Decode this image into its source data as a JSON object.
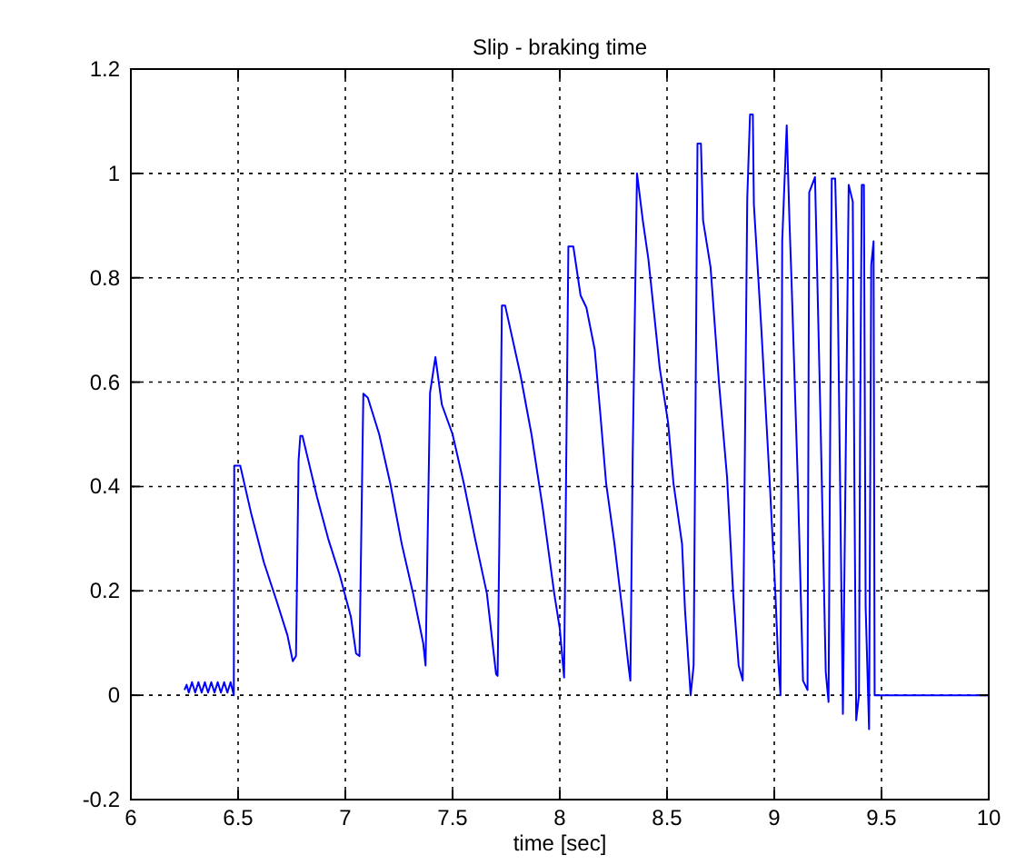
{
  "chart_data": {
    "type": "line",
    "title": "Slip - braking time",
    "xlabel": "time [sec]",
    "xlim": [
      6,
      10
    ],
    "xticks": [
      6,
      6.5,
      7,
      7.5,
      8,
      8.5,
      9,
      9.5,
      10
    ],
    "ylim": [
      -0.2,
      1.2
    ],
    "yticks": [
      -0.2,
      0,
      0.2,
      0.4,
      0.6,
      0.8,
      1,
      1.2
    ],
    "grid": true,
    "line_style": "solid",
    "series": [
      {
        "color": "#0000ff",
        "x": [
          6.25,
          6.26,
          6.27,
          6.285,
          6.3,
          6.315,
          6.33,
          6.345,
          6.36,
          6.375,
          6.39,
          6.405,
          6.42,
          6.435,
          6.45,
          6.465,
          6.48,
          6.482,
          6.51,
          6.56,
          6.62,
          6.68,
          6.73,
          6.755,
          6.77,
          6.782,
          6.79,
          6.8,
          6.868,
          6.92,
          6.974,
          7.026,
          7.05,
          7.066,
          7.084,
          7.105,
          7.158,
          7.21,
          7.263,
          7.316,
          7.363,
          7.374,
          7.395,
          7.42,
          7.45,
          7.5,
          7.553,
          7.605,
          7.66,
          7.703,
          7.71,
          7.718,
          7.73,
          7.745,
          7.816,
          7.868,
          7.92,
          7.974,
          8.0,
          8.02,
          8.04,
          8.063,
          8.097,
          8.124,
          8.163,
          8.19,
          8.216,
          8.255,
          8.295,
          8.32,
          8.329,
          8.34,
          8.36,
          8.387,
          8.413,
          8.44,
          8.466,
          8.505,
          8.53,
          8.57,
          8.584,
          8.61,
          8.624,
          8.642,
          8.658,
          8.668,
          8.703,
          8.742,
          8.78,
          8.808,
          8.834,
          8.853,
          8.874,
          8.887,
          8.9,
          8.905,
          8.94,
          8.979,
          9.005,
          9.018,
          9.029,
          9.037,
          9.058,
          9.071,
          9.08,
          9.11,
          9.134,
          9.155,
          9.163,
          9.19,
          9.216,
          9.24,
          9.253,
          9.268,
          9.284,
          9.295,
          9.32,
          9.347,
          9.366,
          9.374,
          9.382,
          9.395,
          9.4,
          9.408,
          9.418,
          9.426,
          9.442,
          9.452,
          9.463,
          9.468,
          10
        ],
        "values": [
          0.01,
          0.02,
          0.005,
          0.025,
          0.005,
          0.025,
          0.005,
          0.025,
          0.005,
          0.025,
          0.005,
          0.025,
          0.005,
          0.025,
          0.005,
          0.025,
          0,
          0.44,
          0.44,
          0.35,
          0.255,
          0.18,
          0.115,
          0.065,
          0.075,
          0.45,
          0.497,
          0.497,
          0.38,
          0.3,
          0.23,
          0.15,
          0.08,
          0.075,
          0.578,
          0.57,
          0.5,
          0.405,
          0.29,
          0.195,
          0.1,
          0.057,
          0.58,
          0.648,
          0.557,
          0.5,
          0.405,
          0.3,
          0.195,
          0.04,
          0.037,
          0.29,
          0.747,
          0.747,
          0.615,
          0.5,
          0.36,
          0.195,
          0.127,
          0.034,
          0.86,
          0.86,
          0.766,
          0.743,
          0.662,
          0.534,
          0.406,
          0.29,
          0.15,
          0.057,
          0.028,
          0.464,
          1.0,
          0.91,
          0.836,
          0.73,
          0.627,
          0.522,
          0.406,
          0.29,
          0.162,
          0,
          0.057,
          1.057,
          1.057,
          0.91,
          0.82,
          0.6,
          0.417,
          0.197,
          0.057,
          0.028,
          0.952,
          1.113,
          1.113,
          0.94,
          0.7,
          0.406,
          0.197,
          0.069,
          0,
          0.87,
          1.092,
          0.906,
          0.8,
          0.406,
          0.028,
          0.01,
          0.964,
          0.993,
          0.52,
          0.045,
          -0.013,
          0.99,
          0.99,
          0.807,
          -0.036,
          0.978,
          0.946,
          0.38,
          -0.048,
          0,
          0.5,
          0.978,
          0.978,
          0.17,
          -0.065,
          0.824,
          0.87,
          0,
          0
        ]
      }
    ]
  }
}
